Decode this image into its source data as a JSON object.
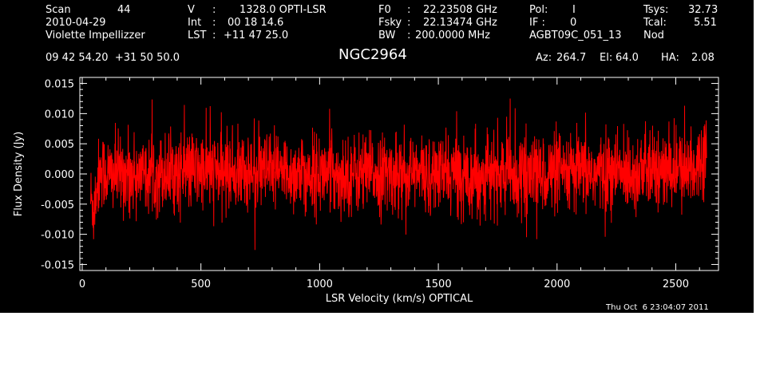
{
  "header": {
    "scan_label": "Scan",
    "scan_number": "44",
    "date": "2010-04-29",
    "observer": "Violette Impellizzer",
    "v_label": "V",
    "v_value": "1328.0 OPTI-LSR",
    "int_label": "Int",
    "int_value": "00 18 14.6",
    "lst_label": "LST",
    "lst_value": "+11 47 25.0",
    "f0_label": "F0",
    "f0_value": "22.23508 GHz",
    "fsky_label": "Fsky",
    "fsky_value": "22.13474 GHz",
    "bw_label": "BW",
    "bw_value": "200.0000 MHz",
    "pol_label": "Pol:",
    "pol_value": "I",
    "if_label": "IF :",
    "if_value": "0",
    "project": "AGBT09C_051_13",
    "tsys_label": "Tsys:",
    "tsys_value": "32.73",
    "tcal_label": "Tcal:",
    "tcal_value": "5.51",
    "mode": "Nod",
    "coords": "09 42 54.20  +31 50 50.0",
    "source": "NGC2964",
    "az_label": "Az:",
    "az_value": "264.7",
    "el_label": "El:",
    "el_value": "64.0",
    "ha_label": "HA:",
    "ha_value": "2.08",
    "timestamp": "Thu Oct  6 23:04:07 2011"
  },
  "colors": {
    "background": "#000000",
    "axes": "#ffffff",
    "trace": "#ff0000"
  },
  "chart_data": {
    "type": "line",
    "title": "NGC2964",
    "xlabel": "LSR Velocity (km/s) OPTICAL",
    "ylabel": "Flux Density (Jy)",
    "xlim": [
      -10,
      2680
    ],
    "ylim": [
      -0.016,
      0.016
    ],
    "x_ticks": [
      0,
      500,
      1000,
      1500,
      2000,
      2500
    ],
    "x_tick_labels": [
      "0",
      "500",
      "1000",
      "1500",
      "2000",
      "2500"
    ],
    "y_ticks": [
      -0.015,
      -0.01,
      -0.005,
      0.0,
      0.005,
      0.01,
      0.015
    ],
    "y_tick_labels": [
      "-0.015",
      "-0.010",
      "-0.005",
      "0.000",
      "0.005",
      "0.010",
      "0.015"
    ],
    "grid": false,
    "legend": "none",
    "series": [
      {
        "x_start": 35,
        "x_end": 2630,
        "noise_rms": 0.0032,
        "anchors_x": [
          35,
          50,
          60,
          80,
          100,
          200,
          500,
          1000,
          1500,
          2000,
          2500,
          2580,
          2600,
          2620,
          2630
        ],
        "anchors_y": [
          -0.004,
          -0.006,
          -0.002,
          0.001,
          0.0,
          0.0,
          0.0005,
          0.0,
          0.0,
          0.0,
          0.0005,
          0.001,
          0.002,
          0.004,
          0.006
        ]
      }
    ]
  }
}
